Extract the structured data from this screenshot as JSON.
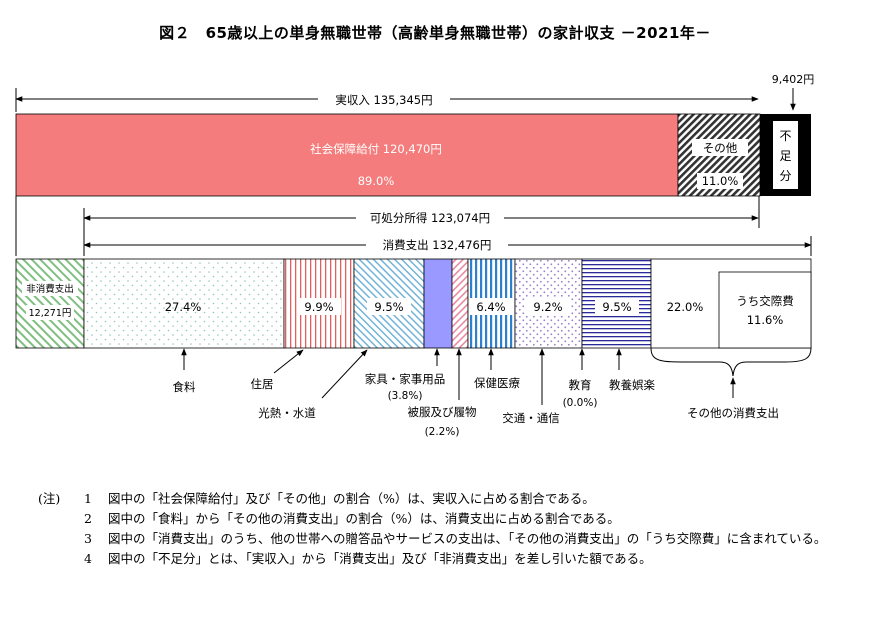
{
  "title": "図２　65歳以上の単身無職世帯（高齢単身無職世帯）の家計収支 －2021年－",
  "chart_data": {
    "type": "bar",
    "title": "図２　65歳以上の単身無職世帯（高齢単身無職世帯）の家計収支 －2021年－",
    "income_bar": {
      "bracket_label": "実収入 135,345円",
      "segments": [
        {
          "name": "社会保障給付",
          "label": "社会保障給付 120,470円",
          "value": 120470,
          "pct_label": "89.0%",
          "color": "#f47c7c"
        },
        {
          "name": "その他",
          "label": "その他",
          "value": 14875,
          "pct_label": "11.0%",
          "pattern": "diagonal-hatch-dark"
        },
        {
          "name": "不足分",
          "label": "不足分",
          "value": 9402,
          "value_label": "9,402円",
          "color": "#000000"
        }
      ]
    },
    "disposable_income_label": "可処分所得 123,074円",
    "consumption_label": "消費支出 132,476円",
    "expense_bar": {
      "non_consumption": {
        "name": "非消費支出",
        "value_label": "12,271円",
        "value": 12271
      },
      "segments": [
        {
          "name": "食料",
          "pct": 27.4,
          "pct_label": "27.4%",
          "pattern": "dots-green"
        },
        {
          "name": "住居",
          "pct": 9.9,
          "pct_label": "9.9%",
          "pattern": "vertical-red-lines"
        },
        {
          "name": "光熱・水道",
          "pct": 9.5,
          "pct_label": "9.5%",
          "pattern": "diagonal-blue"
        },
        {
          "name": "家具・家事用品",
          "pct": 3.8,
          "pct_label": "(3.8%)",
          "color": "#9999ff"
        },
        {
          "name": "被服及び履物",
          "pct": 2.2,
          "pct_label": "(2.2%)",
          "pattern": "diagonal-pink"
        },
        {
          "name": "保健医療",
          "pct": 6.4,
          "pct_label": "6.4%",
          "pattern": "vertical-blue-lines"
        },
        {
          "name": "交通・通信",
          "pct": 9.2,
          "pct_label": "9.2%",
          "pattern": "dots-purple"
        },
        {
          "name": "教育",
          "pct": 0.0,
          "pct_label": "(0.0%)"
        },
        {
          "name": "教養娯楽",
          "pct": 9.5,
          "pct_label": "9.5%",
          "pattern": "horizontal-navy-lines"
        },
        {
          "name": "その他の消費支出",
          "pct": 22.0,
          "pct_label": "22.0%",
          "sub_label": "うち交際費",
          "sub_pct_label": "11.6%"
        }
      ]
    }
  },
  "notes": {
    "mark": "(注)",
    "items": [
      {
        "num": "1",
        "text": "図中の「社会保障給付」及び「その他」の割合（%）は、実収入に占める割合である。"
      },
      {
        "num": "2",
        "text": "図中の「食料」から「その他の消費支出」の割合（%）は、消費支出に占める割合である。"
      },
      {
        "num": "3",
        "text": "図中の「消費支出」のうち、他の世帯への贈答品やサービスの支出は、「その他の消費支出」の「うち交際費」に含まれている。"
      },
      {
        "num": "4",
        "text": "図中の「不足分」とは、「実収入」から「消費支出」及び「非消費支出」を差し引いた額である。"
      }
    ]
  }
}
